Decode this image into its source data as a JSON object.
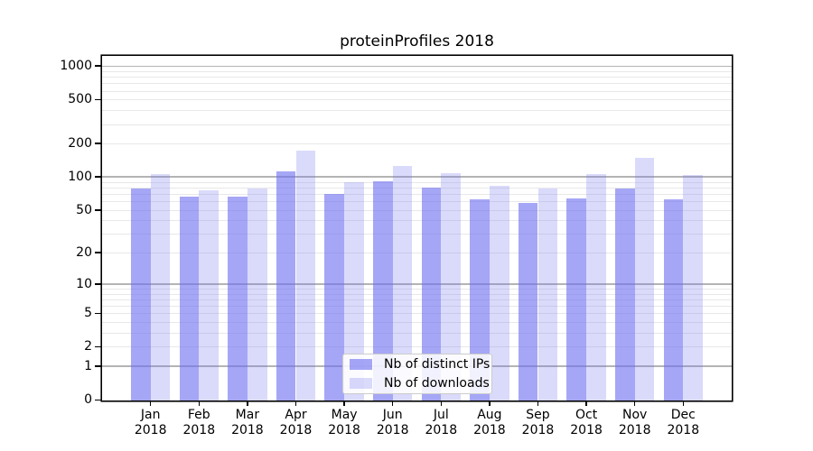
{
  "chart_data": {
    "type": "bar",
    "title": "proteinProfiles 2018",
    "categories": [
      "Jan",
      "Feb",
      "Mar",
      "Apr",
      "May",
      "Jun",
      "Jul",
      "Aug",
      "Sep",
      "Oct",
      "Nov",
      "Dec"
    ],
    "category_year": "2018",
    "series": [
      {
        "name": "Nb of distinct IPs",
        "color": "rgba(112,112,240,0.62)",
        "values": [
          78,
          66,
          66,
          113,
          70,
          92,
          80,
          63,
          58,
          64,
          79,
          63
        ]
      },
      {
        "name": "Nb of downloads",
        "color": "rgba(112,112,240,0.26)",
        "values": [
          106,
          75,
          78,
          172,
          89,
          126,
          108,
          83,
          79,
          107,
          148,
          104
        ]
      }
    ],
    "xlabel": "",
    "ylabel": "",
    "yscale": "log1p",
    "ylim": [
      0,
      1234
    ],
    "yticks": [
      0,
      1,
      2,
      5,
      10,
      20,
      50,
      100,
      200,
      500,
      1000
    ],
    "grid_major": [
      1,
      10,
      100,
      1000
    ],
    "grid_minor": [
      2,
      3,
      4,
      5,
      6,
      7,
      8,
      9,
      20,
      30,
      40,
      50,
      60,
      70,
      80,
      90,
      200,
      300,
      400,
      500,
      600,
      700,
      800,
      900
    ],
    "legend_position": "lower center",
    "colors": {
      "axis": "#000000",
      "grid_major": "#b4b4b4",
      "grid_minor": "#e8e8e8",
      "bar_base": "#7070f0"
    }
  }
}
